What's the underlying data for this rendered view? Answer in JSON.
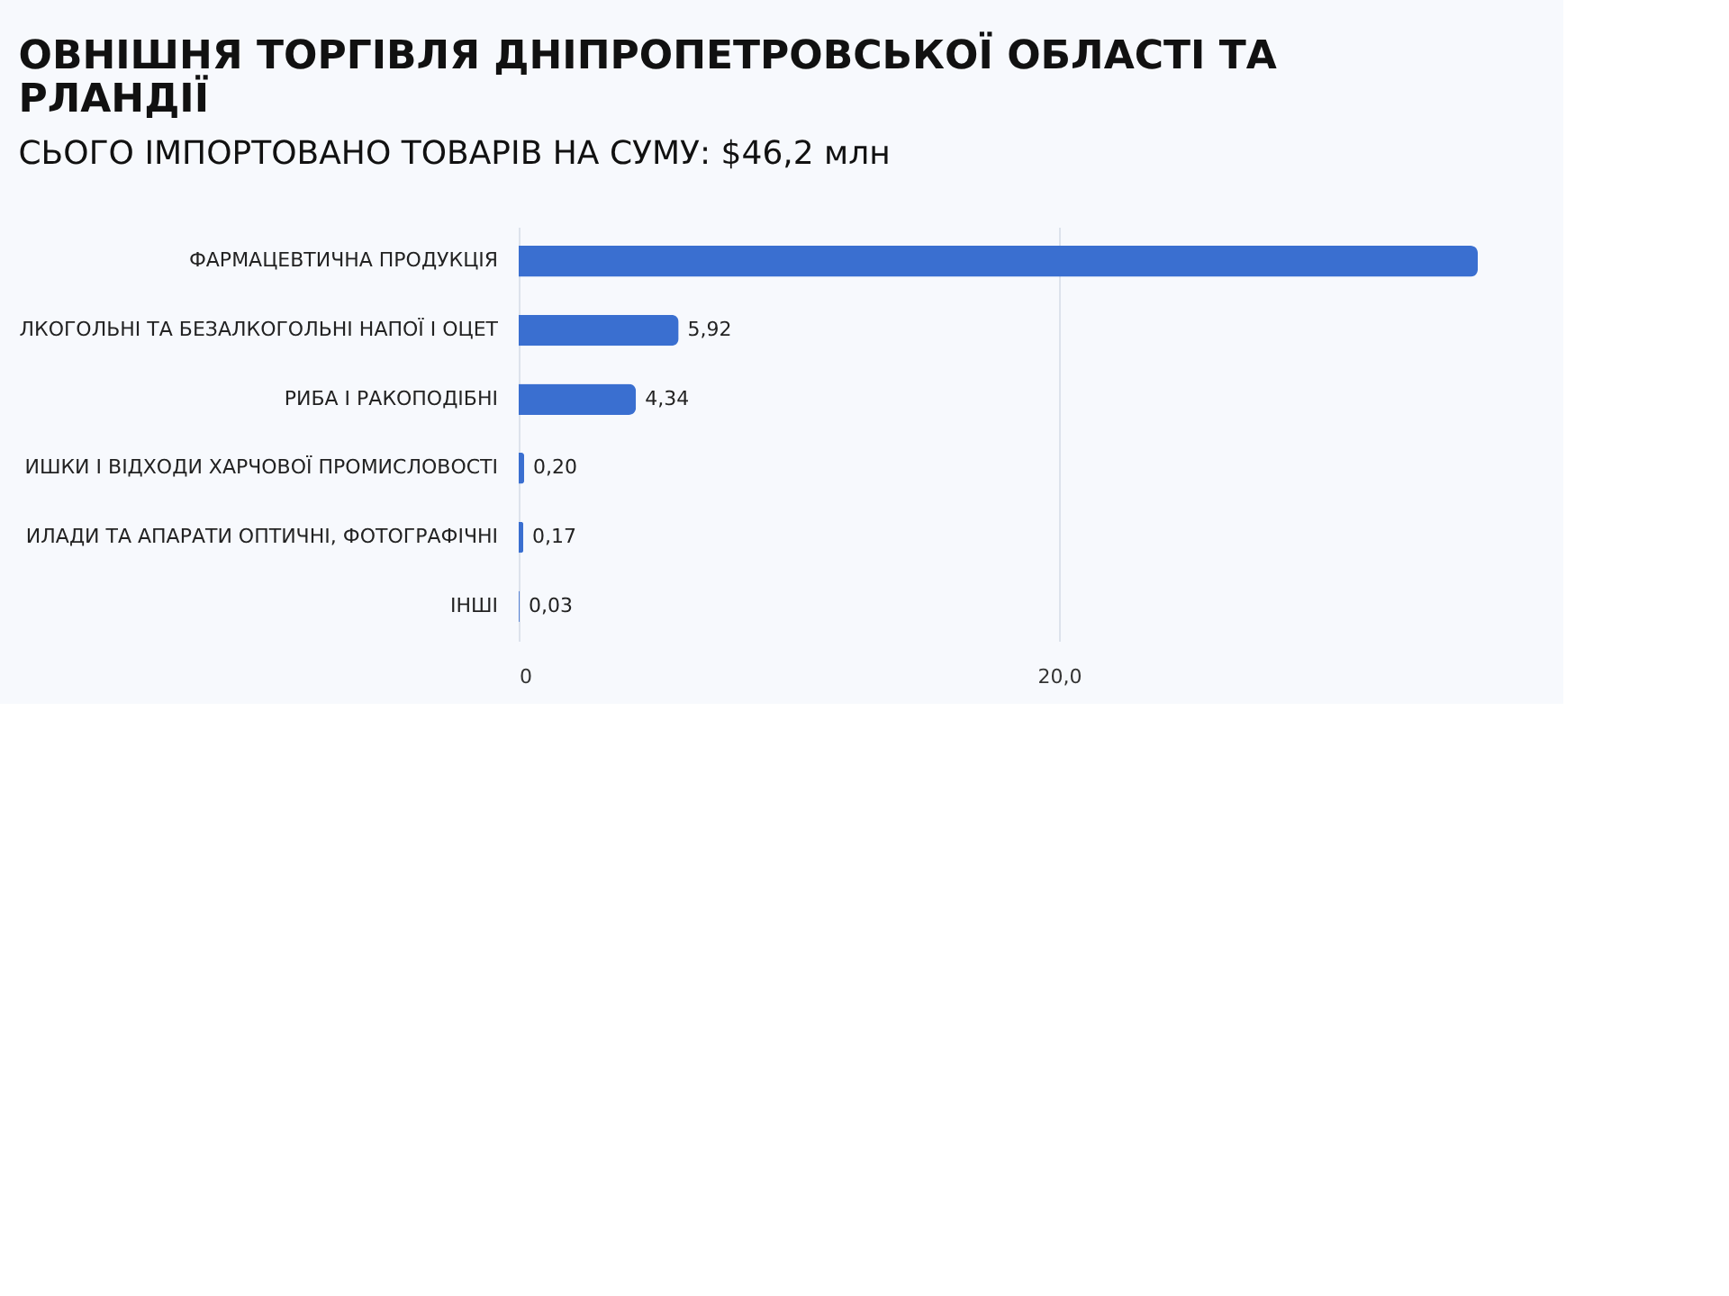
{
  "chart_data": {
    "type": "bar",
    "orientation": "horizontal",
    "title": "ОВНІШНЯ ТОРГІВЛЯ ДНІПРОПЕТРОВСЬКОЇ ОБЛАСТІ ТА\nРЛАНДІЇ",
    "subtitle": "СЬОГО ІМПОРТОВАНО ТОВАРІВ НА СУМУ: $46,2 млн",
    "categories": [
      "ФАРМАЦЕВТИЧНА ПРОДУКЦІЯ",
      "ЛКОГОЛЬНІ ТА БЕЗАЛКОГОЛЬНІ НАПОЇ І ОЦЕТ",
      "РИБА І РАКОПОДІБНІ",
      "ИШКИ І ВІДХОДИ ХАРЧОВОЇ ПРОМИСЛОВОСТІ",
      "ИЛАДИ ТА АПАРАТИ ОПТИЧНІ, ФОТОГРАФІЧНІ",
      "ІНШІ"
    ],
    "values": [
      35.5,
      5.92,
      4.34,
      0.2,
      0.17,
      0.03
    ],
    "value_labels": [
      null,
      "5,92",
      "4,34",
      "0,20",
      "0,17",
      "0,03"
    ],
    "color": "#3a6fd0",
    "xlim": [
      0,
      36
    ],
    "xticks": [
      0,
      {
        "value": 20,
        "label": "20,0"
      }
    ],
    "grid": "x"
  }
}
